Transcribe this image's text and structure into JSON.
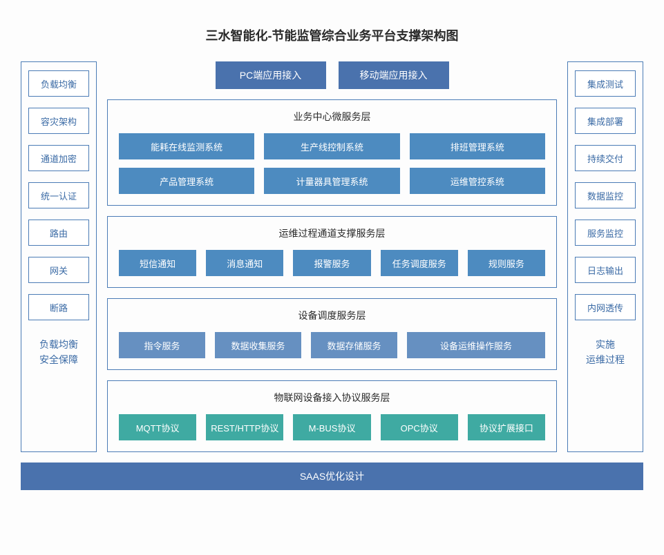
{
  "title": "三水智能化-节能监管综合业务平台支撑架构图",
  "colors": {
    "blue_dark": "#4a72ad",
    "blue_mid": "#4d8bc0",
    "blue_light": "#6690c1",
    "teal": "#3faaa2",
    "border": "#4a7bb5",
    "text_blue": "#3a6aa5"
  },
  "left_sidebar": {
    "items": [
      "负载均衡",
      "容灾架构",
      "通道加密",
      "统一认证",
      "路由",
      "网关",
      "断路"
    ],
    "caption_line1": "负载均衡",
    "caption_line2": "安全保障"
  },
  "right_sidebar": {
    "items": [
      "集成测试",
      "集成部署",
      "持续交付",
      "数据监控",
      "服务监控",
      "日志输出",
      "内网透传"
    ],
    "caption_line1": "实施",
    "caption_line2": "运维过程"
  },
  "top_buttons": {
    "left": "PC端应用接入",
    "right": "移动端应用接入",
    "bg": "#4a72ad"
  },
  "layers": [
    {
      "title": "业务中心微服务层",
      "rows": [
        {
          "items": [
            "能耗在线监测系统",
            "生产线控制系统",
            "排班管理系统"
          ],
          "bg": "#4d8bc0"
        },
        {
          "items": [
            "产品管理系统",
            "计量器具管理系统",
            "运维管控系统"
          ],
          "bg": "#4d8bc0"
        }
      ]
    },
    {
      "title": "运维过程通道支撑服务层",
      "rows": [
        {
          "items": [
            "短信通知",
            "消息通知",
            "报警服务",
            "任务调度服务",
            "规则服务"
          ],
          "bg": "#4d8bc0"
        }
      ]
    },
    {
      "title": "设备调度服务层",
      "rows": [
        {
          "items_weighted": [
            {
              "label": "指令服务",
              "flex": 1
            },
            {
              "label": "数据收集服务",
              "flex": 1
            },
            {
              "label": "数据存储服务",
              "flex": 1
            },
            {
              "label": "设备运维操作服务",
              "flex": 1.6
            }
          ],
          "bg": "#6690c1"
        }
      ]
    },
    {
      "title": "物联网设备接入协议服务层",
      "rows": [
        {
          "items": [
            "MQTT协议",
            "REST/HTTP协议",
            "M-BUS协议",
            "OPC协议",
            "协议扩展接口"
          ],
          "bg": "#3faaa2"
        }
      ]
    }
  ],
  "footer": {
    "label": "SAAS优化设计",
    "bg": "#4a72ad"
  }
}
